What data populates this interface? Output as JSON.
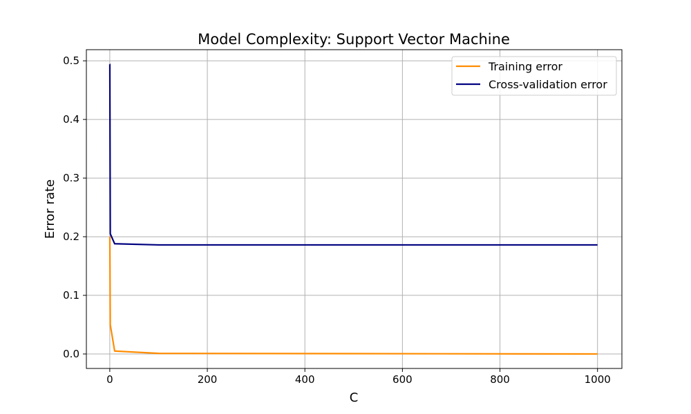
{
  "chart_data": {
    "type": "line",
    "title": "Model Complexity: Support Vector Machine",
    "xlabel": "C",
    "ylabel": "Error rate",
    "xlim": [
      -48,
      1050
    ],
    "ylim": [
      -0.0247,
      0.519
    ],
    "xticks": [
      0,
      200,
      400,
      600,
      800,
      1000
    ],
    "yticks": [
      0.0,
      0.1,
      0.2,
      0.3,
      0.4,
      0.5
    ],
    "xtick_labels": [
      "0",
      "200",
      "400",
      "600",
      "800",
      "1000"
    ],
    "ytick_labels": [
      "0.0",
      "0.1",
      "0.2",
      "0.3",
      "0.4",
      "0.5"
    ],
    "grid": true,
    "legend": "top-right",
    "x": [
      0.001,
      0.01,
      0.1,
      1,
      10,
      100,
      1000
    ],
    "series": [
      {
        "name": "Training error",
        "color": "#ff8c00",
        "values": [
          0.2,
          0.2,
          0.2,
          0.05,
          0.005,
          0.001,
          0.0
        ]
      },
      {
        "name": "Cross-validation error",
        "color": "#000080",
        "values": [
          0.494,
          0.494,
          0.494,
          0.205,
          0.188,
          0.186,
          0.186
        ]
      }
    ]
  }
}
